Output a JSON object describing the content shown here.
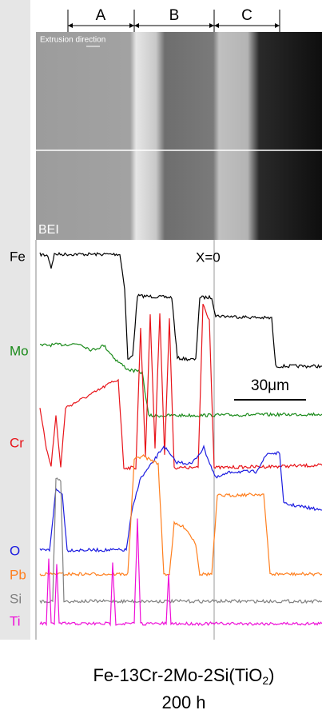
{
  "header": {
    "zones": [
      "A",
      "B",
      "C"
    ]
  },
  "micrograph": {
    "annotation": "Extrusion direction",
    "mode": "BEI"
  },
  "profile": {
    "elements": [
      {
        "symbol": "Fe",
        "color": "#000000"
      },
      {
        "symbol": "Mo",
        "color": "#1a8a1a"
      },
      {
        "symbol": "Cr",
        "color": "#e8141a"
      },
      {
        "symbol": "O",
        "color": "#1c1ce0"
      },
      {
        "symbol": "Pb",
        "color": "#ff7f1e"
      },
      {
        "symbol": "Si",
        "color": "#808080"
      },
      {
        "symbol": "Ti",
        "color": "#ee10d8"
      }
    ],
    "origin_label": "X=0",
    "scale_bar": "30μm"
  },
  "caption": {
    "formula_prefix": "Fe-13Cr-2Mo-2Si(TiO",
    "subscript": "2",
    "formula_suffix": ")",
    "time": "200 h"
  }
}
